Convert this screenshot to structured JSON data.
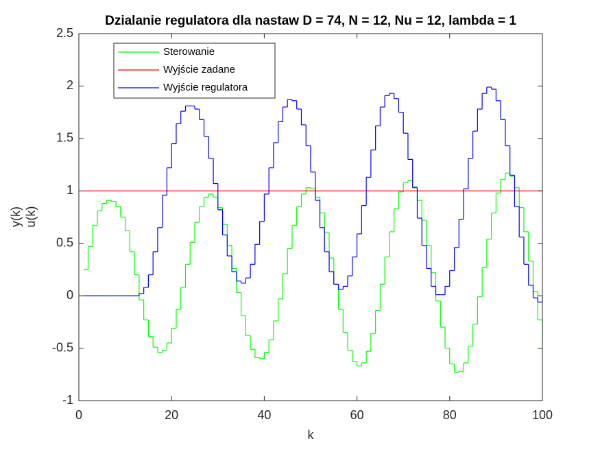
{
  "chart_data": {
    "type": "stairs",
    "title": "Dzialanie regulatora dla nastaw D = 74, N = 12, Nu = 12, lambda = 1",
    "xlabel": "k",
    "ylabel": [
      "y(k)",
      "u(k)"
    ],
    "xlim": [
      0,
      100
    ],
    "ylim": [
      -1,
      2.5
    ],
    "xticks": [
      0,
      20,
      40,
      60,
      80,
      100
    ],
    "yticks": [
      -1,
      -0.5,
      0,
      0.5,
      1,
      1.5,
      2,
      2.5
    ],
    "grid": false,
    "legend_position": "northwest",
    "x": [
      1,
      2,
      3,
      4,
      5,
      6,
      7,
      8,
      9,
      10,
      11,
      12,
      13,
      14,
      15,
      16,
      17,
      18,
      19,
      20,
      21,
      22,
      23,
      24,
      25,
      26,
      27,
      28,
      29,
      30,
      31,
      32,
      33,
      34,
      35,
      36,
      37,
      38,
      39,
      40,
      41,
      42,
      43,
      44,
      45,
      46,
      47,
      48,
      49,
      50,
      51,
      52,
      53,
      54,
      55,
      56,
      57,
      58,
      59,
      60,
      61,
      62,
      63,
      64,
      65,
      66,
      67,
      68,
      69,
      70,
      71,
      72,
      73,
      74,
      75,
      76,
      77,
      78,
      79,
      80,
      81,
      82,
      83,
      84,
      85,
      86,
      87,
      88,
      89,
      90,
      91,
      92,
      93,
      94,
      95,
      96,
      97,
      98,
      99,
      100
    ],
    "series": [
      {
        "name": "Sterowanie",
        "color": "#00ff00",
        "values": [
          0.25,
          0.47,
          0.67,
          0.81,
          0.88,
          0.91,
          0.9,
          0.85,
          0.75,
          0.62,
          0.42,
          0.2,
          -0.04,
          -0.23,
          -0.39,
          -0.49,
          -0.54,
          -0.52,
          -0.45,
          -0.31,
          -0.13,
          0.08,
          0.3,
          0.51,
          0.7,
          0.85,
          0.94,
          0.97,
          0.94,
          0.84,
          0.68,
          0.48,
          0.26,
          0.03,
          -0.19,
          -0.38,
          -0.51,
          -0.59,
          -0.6,
          -0.54,
          -0.42,
          -0.24,
          -0.03,
          0.21,
          0.45,
          0.67,
          0.85,
          0.97,
          1.03,
          1.02,
          0.94,
          0.79,
          0.6,
          0.36,
          0.11,
          -0.13,
          -0.35,
          -0.52,
          -0.63,
          -0.67,
          -0.64,
          -0.53,
          -0.36,
          -0.14,
          0.11,
          0.37,
          0.61,
          0.83,
          0.99,
          1.08,
          1.1,
          1.04,
          0.91,
          0.72,
          0.48,
          0.22,
          -0.05,
          -0.3,
          -0.5,
          -0.65,
          -0.73,
          -0.72,
          -0.64,
          -0.48,
          -0.27,
          -0.01,
          0.27,
          0.54,
          0.79,
          0.98,
          1.11,
          1.17,
          1.14,
          1.03,
          0.84,
          0.61,
          0.33,
          0.04,
          -0.23,
          -0.47
        ]
      },
      {
        "name": "Wyjście zadane",
        "color": "#ff0000",
        "values": [
          1,
          1,
          1,
          1,
          1,
          1,
          1,
          1,
          1,
          1,
          1,
          1,
          1,
          1,
          1,
          1,
          1,
          1,
          1,
          1,
          1,
          1,
          1,
          1,
          1,
          1,
          1,
          1,
          1,
          1,
          1,
          1,
          1,
          1,
          1,
          1,
          1,
          1,
          1,
          1,
          1,
          1,
          1,
          1,
          1,
          1,
          1,
          1,
          1,
          1,
          1,
          1,
          1,
          1,
          1,
          1,
          1,
          1,
          1,
          1,
          1,
          1,
          1,
          1,
          1,
          1,
          1,
          1,
          1,
          1,
          1,
          1,
          1,
          1,
          1,
          1,
          1,
          1,
          1,
          1,
          1,
          1,
          1,
          1,
          1,
          1,
          1,
          1,
          1,
          1,
          1,
          1,
          1,
          1,
          1,
          1,
          1,
          1,
          1,
          1
        ]
      },
      {
        "name": "Wyjście regulatora",
        "color": "#0000ff",
        "values": [
          0,
          0,
          0,
          0,
          0,
          0,
          0,
          0,
          0,
          0,
          0,
          0,
          0.02,
          0.08,
          0.2,
          0.42,
          0.65,
          0.96,
          1.22,
          1.45,
          1.64,
          1.76,
          1.81,
          1.81,
          1.78,
          1.68,
          1.52,
          1.31,
          1.07,
          0.82,
          0.58,
          0.38,
          0.23,
          0.14,
          0.12,
          0.17,
          0.3,
          0.49,
          0.71,
          0.97,
          1.22,
          1.46,
          1.66,
          1.8,
          1.87,
          1.86,
          1.78,
          1.63,
          1.43,
          1.18,
          0.91,
          0.65,
          0.42,
          0.23,
          0.11,
          0.06,
          0.09,
          0.19,
          0.37,
          0.59,
          0.86,
          1.13,
          1.39,
          1.62,
          1.8,
          1.91,
          1.93,
          1.88,
          1.75,
          1.55,
          1.3,
          1.03,
          0.74,
          0.48,
          0.26,
          0.09,
          0.01,
          0.01,
          0.09,
          0.24,
          0.46,
          0.73,
          1.02,
          1.31,
          1.57,
          1.78,
          1.93,
          1.99,
          1.97,
          1.86,
          1.68,
          1.43,
          1.15,
          0.85,
          0.56,
          0.3,
          0.1,
          -0.02,
          -0.06,
          -0.01
        ]
      }
    ]
  }
}
